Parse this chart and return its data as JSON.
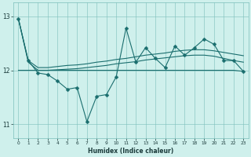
{
  "xlabel": "Humidex (Indice chaleur)",
  "xlim": [
    -0.5,
    23.5
  ],
  "ylim": [
    10.75,
    13.25
  ],
  "yticks": [
    11,
    12,
    13
  ],
  "xticks": [
    0,
    1,
    2,
    3,
    4,
    5,
    6,
    7,
    8,
    9,
    10,
    11,
    12,
    13,
    14,
    15,
    16,
    17,
    18,
    19,
    20,
    21,
    22,
    23
  ],
  "bg_color": "#cff0ec",
  "grid_color": "#7bbfbb",
  "line_color": "#1a6e6e",
  "line1_observed": [
    12.95,
    12.18,
    11.95,
    11.92,
    11.8,
    11.65,
    11.68,
    11.05,
    11.52,
    11.55,
    11.88,
    12.78,
    12.15,
    12.42,
    12.22,
    12.05,
    12.45,
    12.28,
    12.42,
    12.58,
    12.48,
    12.18,
    12.18,
    11.98
  ],
  "line2_smooth_upper": [
    12.95,
    12.18,
    12.05,
    12.05,
    12.07,
    12.09,
    12.1,
    12.12,
    12.15,
    12.17,
    12.2,
    12.22,
    12.25,
    12.28,
    12.3,
    12.32,
    12.35,
    12.37,
    12.38,
    12.38,
    12.36,
    12.33,
    12.3,
    12.27
  ],
  "line3_smooth_mid": [
    12.95,
    12.15,
    12.0,
    12.0,
    12.01,
    12.02,
    12.03,
    12.05,
    12.07,
    12.09,
    12.12,
    12.14,
    12.16,
    12.19,
    12.21,
    12.23,
    12.25,
    12.27,
    12.28,
    12.28,
    12.26,
    12.22,
    12.18,
    12.15
  ],
  "line4_flat": [
    12.0,
    12.0,
    12.0,
    12.0,
    12.0,
    12.0,
    12.0,
    12.0,
    12.0,
    12.0,
    12.0,
    12.0,
    12.0,
    12.0,
    12.0,
    12.0,
    12.0,
    12.0,
    12.0,
    12.0,
    12.0,
    12.0,
    12.0,
    11.98
  ],
  "marker": "D",
  "markersize": 2.5,
  "linewidth": 0.8
}
